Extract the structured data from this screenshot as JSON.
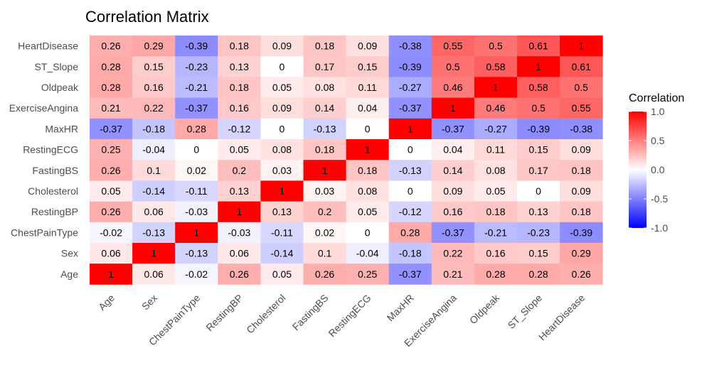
{
  "chart_data": {
    "type": "heatmap",
    "title": "Correlation Matrix",
    "variables": [
      "Age",
      "Sex",
      "ChestPainType",
      "RestingBP",
      "Cholesterol",
      "FastingBS",
      "RestingECG",
      "MaxHR",
      "ExerciseAngina",
      "Oldpeak",
      "ST_Slope",
      "HeartDisease"
    ],
    "rows_top_to_bottom": [
      "HeartDisease",
      "ST_Slope",
      "Oldpeak",
      "ExerciseAngina",
      "MaxHR",
      "RestingECG",
      "FastingBS",
      "Cholesterol",
      "RestingBP",
      "ChestPainType",
      "Sex",
      "Age"
    ],
    "values": [
      [
        0.26,
        0.29,
        -0.39,
        0.18,
        0.09,
        0.18,
        0.09,
        -0.38,
        0.55,
        0.5,
        0.61,
        1
      ],
      [
        0.28,
        0.15,
        -0.23,
        0.13,
        0,
        0.17,
        0.15,
        -0.39,
        0.5,
        0.58,
        1,
        0.61
      ],
      [
        0.28,
        0.16,
        -0.21,
        0.18,
        0.05,
        0.08,
        0.11,
        -0.27,
        0.46,
        1,
        0.58,
        0.5
      ],
      [
        0.21,
        0.22,
        -0.37,
        0.16,
        0.09,
        0.14,
        0.04,
        -0.37,
        1,
        0.46,
        0.5,
        0.55
      ],
      [
        -0.37,
        -0.18,
        0.28,
        -0.12,
        0,
        -0.13,
        0,
        1,
        -0.37,
        -0.27,
        -0.39,
        -0.38
      ],
      [
        0.25,
        -0.04,
        0,
        0.05,
        0.08,
        0.18,
        1,
        0,
        0.04,
        0.11,
        0.15,
        0.09
      ],
      [
        0.26,
        0.1,
        0.02,
        0.2,
        0.03,
        1,
        0.18,
        -0.13,
        0.14,
        0.08,
        0.17,
        0.18
      ],
      [
        0.05,
        -0.14,
        -0.11,
        0.13,
        1,
        0.03,
        0.08,
        0,
        0.09,
        0.05,
        0,
        0.09
      ],
      [
        0.26,
        0.06,
        -0.03,
        1,
        0.13,
        0.2,
        0.05,
        -0.12,
        0.16,
        0.18,
        0.13,
        0.18
      ],
      [
        -0.02,
        -0.13,
        1,
        -0.03,
        -0.11,
        0.02,
        0,
        0.28,
        -0.37,
        -0.21,
        -0.23,
        -0.39
      ],
      [
        0.06,
        1,
        -0.13,
        0.06,
        -0.14,
        0.1,
        -0.04,
        -0.18,
        0.22,
        0.16,
        0.15,
        0.29
      ],
      [
        1,
        0.06,
        -0.02,
        0.26,
        0.05,
        0.26,
        0.25,
        -0.37,
        0.21,
        0.28,
        0.28,
        0.26
      ]
    ],
    "legend": {
      "title": "Correlation",
      "ticks": [
        "1.0",
        "0.5",
        "0.0",
        "-0.5",
        "-1.0"
      ],
      "tick_values": [
        1.0,
        0.5,
        0.0,
        -0.5,
        -1.0
      ],
      "range": [
        -1,
        1
      ],
      "placement": "right"
    },
    "colors": {
      "low": "#0000FF",
      "mid": "#FFFFFF",
      "high": "#FF0000"
    }
  }
}
